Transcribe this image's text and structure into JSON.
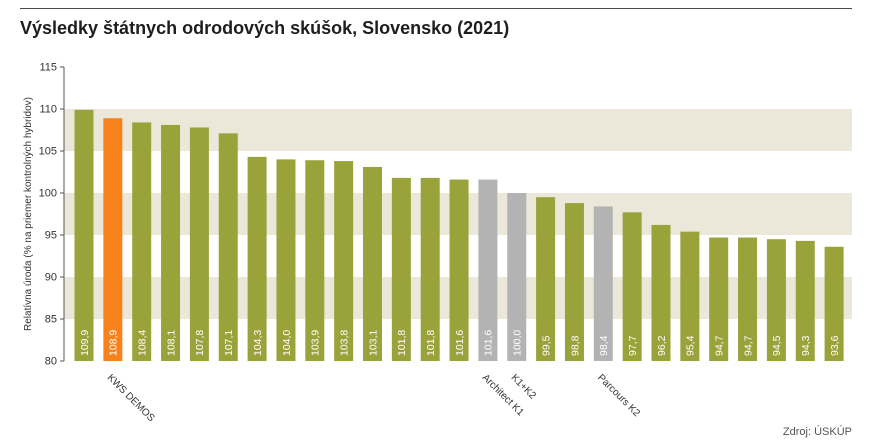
{
  "title": "Výsledky štátnych odrodových skúšok, Slovensko (2021)",
  "source": "Zdroj: ÚSKÚP",
  "colors": {
    "band": "#ebe7d9",
    "default": "#9aa23a",
    "highlight": "#f7821b",
    "control": "#b3b3b3",
    "axis": "#555555"
  },
  "chart_data": {
    "type": "bar",
    "ylabel": "Relatívna úroda (% na priemer kontrolných hybridov)",
    "ylim": [
      80,
      115
    ],
    "yticks": [
      80,
      85,
      90,
      95,
      100,
      105,
      110,
      115
    ],
    "grid": "alternating horizontal bands",
    "value_labels": [
      "109,9",
      "108,9",
      "108,4",
      "108,1",
      "107,8",
      "107,1",
      "104,3",
      "104,0",
      "103,9",
      "103,8",
      "103,1",
      "101,8",
      "101,8",
      "101,6",
      "101,6",
      "100,0",
      "99,5",
      "98,8",
      "98,4",
      "97,7",
      "96,2",
      "95,4",
      "94,7",
      "94,7",
      "94,5",
      "94,3",
      "93,6"
    ],
    "values": [
      109.9,
      108.9,
      108.4,
      108.1,
      107.8,
      107.1,
      104.3,
      104.0,
      103.9,
      103.8,
      103.1,
      101.8,
      101.8,
      101.6,
      101.6,
      100.0,
      99.5,
      98.8,
      98.4,
      97.7,
      96.2,
      95.4,
      94.7,
      94.7,
      94.5,
      94.3,
      93.6
    ],
    "categories": [
      "",
      "KWS DEMOS",
      "",
      "",
      "",
      "",
      "",
      "",
      "",
      "",
      "",
      "",
      "",
      "",
      "Architect K1",
      "K1+K2",
      "",
      "",
      "Parcours K2",
      "",
      "",
      "",
      "",
      "",
      "",
      "",
      ""
    ],
    "bar_types": [
      "default",
      "highlight",
      "default",
      "default",
      "default",
      "default",
      "default",
      "default",
      "default",
      "default",
      "default",
      "default",
      "default",
      "default",
      "control",
      "control",
      "default",
      "default",
      "control",
      "default",
      "default",
      "default",
      "default",
      "default",
      "default",
      "default",
      "default"
    ]
  }
}
